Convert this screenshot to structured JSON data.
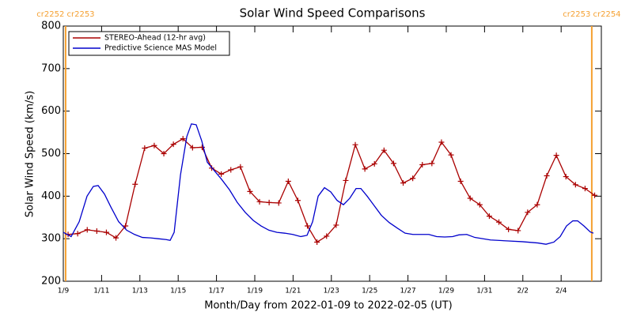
{
  "chart_data": {
    "type": "line",
    "title": "Solar Wind Speed Comparisons",
    "xlabel": "Month/Day from 2022-01-09 to 2022-02-05 (UT)",
    "ylabel": "Solar Wind Speed (km/s)",
    "xlim": [
      0,
      28.1
    ],
    "ylim": [
      200,
      800
    ],
    "xticks": [
      {
        "value": 0,
        "label": "1/9"
      },
      {
        "value": 2,
        "label": "1/11"
      },
      {
        "value": 4,
        "label": "1/13"
      },
      {
        "value": 6,
        "label": "1/15"
      },
      {
        "value": 8,
        "label": "1/17"
      },
      {
        "value": 10,
        "label": "1/19"
      },
      {
        "value": 12,
        "label": "1/21"
      },
      {
        "value": 14,
        "label": "1/23"
      },
      {
        "value": 16,
        "label": "1/25"
      },
      {
        "value": 18,
        "label": "1/27"
      },
      {
        "value": 20,
        "label": "1/29"
      },
      {
        "value": 22,
        "label": "1/31"
      },
      {
        "value": 24,
        "label": "2/2"
      },
      {
        "value": 26,
        "label": "2/4"
      }
    ],
    "yticks": [
      200,
      300,
      400,
      500,
      600,
      700,
      800
    ],
    "legend": "upper left",
    "cr_boundaries": [
      {
        "x": 0.12,
        "label": "cr2252 cr2253",
        "color": "#f5a030"
      },
      {
        "x": 27.6,
        "label": "cr2253 cr2254",
        "color": "#f5a030"
      }
    ],
    "series": [
      {
        "name": "STEREO-Ahead (12-hr avg)",
        "color": "#aa0000",
        "marker": "+",
        "x": [
          0.25,
          0.75,
          1.25,
          1.75,
          2.25,
          2.75,
          3.25,
          3.75,
          4.25,
          4.75,
          5.25,
          5.75,
          6.25,
          6.75,
          7.25,
          7.75,
          8.25,
          8.75,
          9.25,
          9.75,
          10.25,
          10.75,
          11.25,
          11.75,
          12.25,
          12.75,
          13.25,
          13.75,
          14.25,
          14.75,
          15.25,
          15.75,
          16.25,
          16.75,
          17.25,
          17.75,
          18.25,
          18.75,
          19.25,
          19.75,
          20.25,
          20.75,
          21.25,
          21.75,
          22.25,
          22.75,
          23.25,
          23.75,
          24.25,
          24.75,
          25.25,
          25.75,
          26.25,
          26.75,
          27.25,
          27.75
        ],
        "values": [
          310,
          312,
          321,
          318,
          315,
          302,
          330,
          428,
          513,
          519,
          500,
          522,
          535,
          514,
          515,
          466,
          452,
          462,
          469,
          411,
          387,
          385,
          384,
          435,
          390,
          330,
          292,
          306,
          332,
          437,
          521,
          464,
          476,
          508,
          477,
          431,
          442,
          474,
          477,
          527,
          497,
          435,
          395,
          380,
          353,
          339,
          322,
          319,
          362,
          380,
          448,
          496,
          446,
          427,
          418,
          402
        ]
      },
      {
        "name": "Predictive Science MAS Model",
        "color": "#0000cc",
        "x": [
          0,
          0.41,
          0.83,
          1.24,
          1.57,
          1.82,
          2.15,
          2.48,
          2.89,
          3.31,
          3.72,
          4.13,
          4.55,
          4.96,
          5.37,
          5.58,
          5.79,
          6.12,
          6.45,
          6.69,
          6.94,
          7.23,
          7.52,
          7.85,
          8.26,
          8.68,
          9.09,
          9.5,
          9.92,
          10.33,
          10.74,
          11.16,
          11.57,
          11.98,
          12.4,
          12.73,
          13.02,
          13.31,
          13.64,
          13.97,
          14.3,
          14.63,
          14.96,
          15.29,
          15.54,
          15.87,
          16.2,
          16.61,
          17.02,
          17.44,
          17.85,
          18.26,
          18.68,
          19.09,
          19.5,
          19.92,
          20.33,
          20.66,
          21.07,
          21.49,
          21.9,
          22.31,
          23.14,
          23.97,
          24.79,
          25.21,
          25.62,
          25.95,
          26.28,
          26.61,
          26.86,
          27.19,
          27.52,
          27.69
        ],
        "values": [
          315,
          305,
          340,
          400,
          423,
          425,
          405,
          375,
          340,
          320,
          310,
          303,
          302,
          300,
          298,
          296,
          315,
          450,
          540,
          570,
          568,
          530,
          480,
          462,
          440,
          415,
          385,
          362,
          343,
          330,
          320,
          315,
          313,
          310,
          305,
          308,
          340,
          400,
          420,
          410,
          390,
          380,
          395,
          418,
          418,
          400,
          380,
          355,
          338,
          325,
          313,
          310,
          310,
          310,
          305,
          304,
          305,
          309,
          310,
          303,
          300,
          297,
          295,
          293,
          290,
          287,
          292,
          305,
          330,
          342,
          342,
          330,
          316,
          313
        ]
      }
    ]
  }
}
